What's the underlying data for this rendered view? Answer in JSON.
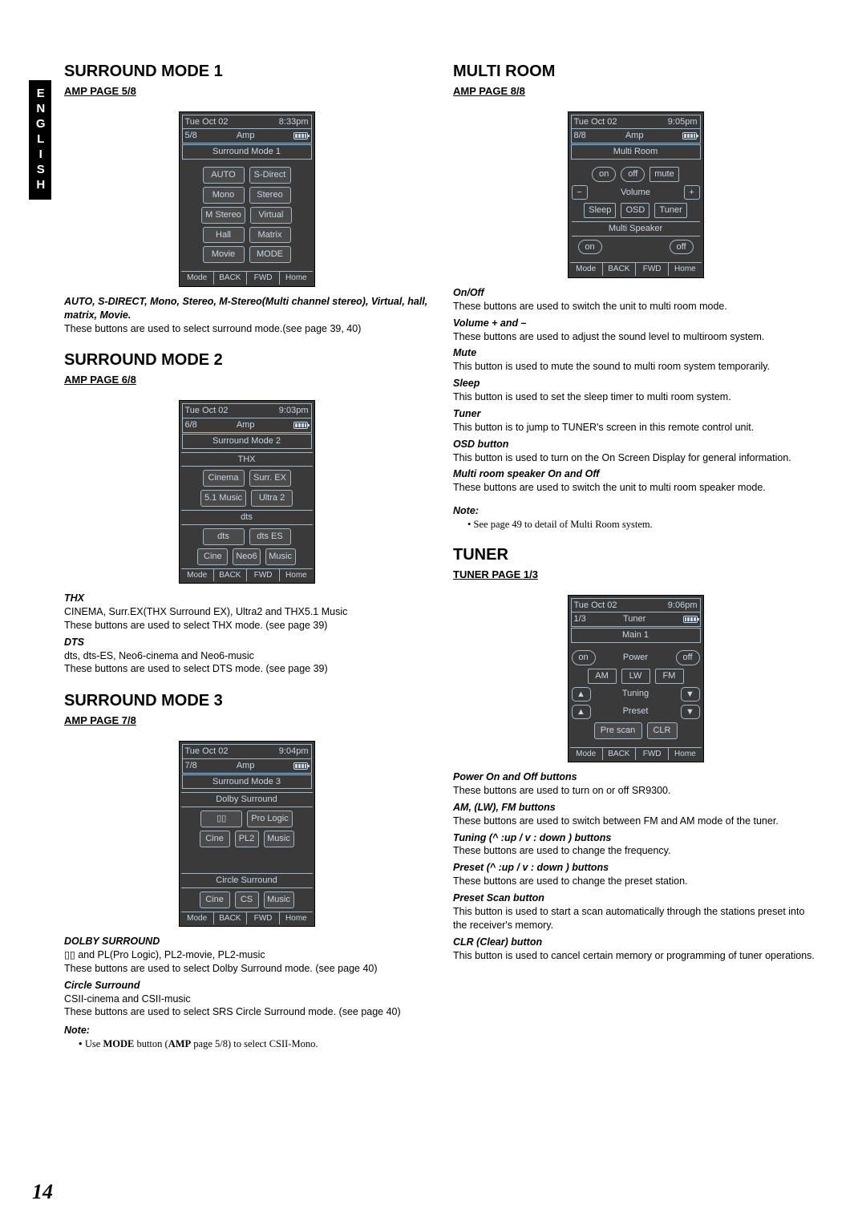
{
  "lang": "ENGLISH",
  "page_number": "14",
  "screens": {
    "date": "Tue Oct 02",
    "device": "Amp",
    "tuner_device": "Tuner",
    "nav": [
      "Mode",
      "BACK",
      "FWD",
      "Home"
    ]
  },
  "sm1": {
    "title": "SURROUND MODE 1",
    "page": "AMP PAGE 5/8",
    "time": "8:33pm",
    "idx": "5/8",
    "screen_title": "Surround Mode 1",
    "rows": [
      [
        "AUTO",
        "S-Direct"
      ],
      [
        "Mono",
        "Stereo"
      ],
      [
        "M Stereo",
        "Virtual"
      ],
      [
        "Hall",
        "Matrix"
      ],
      [
        "Movie",
        "MODE"
      ]
    ],
    "d1_title": "AUTO, S-DIRECT, Mono, Stereo, M-Stereo(Multi channel stereo), Virtual, hall, matrix, Movie.",
    "d1_text": "These buttons are used to select surround mode.(see page 39, 40)"
  },
  "sm2": {
    "title": "SURROUND MODE 2",
    "page": "AMP PAGE 6/8",
    "time": "9:03pm",
    "idx": "6/8",
    "screen_title": "Surround Mode 2",
    "sub1": "THX",
    "r1": [
      "Cinema",
      "Surr. EX"
    ],
    "r2": [
      "5.1 Music",
      "Ultra 2"
    ],
    "sub2": "dts",
    "r3": [
      "dts",
      "dts ES"
    ],
    "r4": [
      "Cine",
      "Neo6",
      "Music"
    ],
    "thx_title": "THX",
    "thx_text": "CINEMA, Surr.EX(THX Surround EX), Ultra2 and THX5.1 Music\nThese buttons are used to select THX mode. (see page 39)",
    "dts_title": "DTS",
    "dts_text": "dts, dts-ES, Neo6-cinema and Neo6-music\nThese buttons are used to select DTS mode. (see page 39)"
  },
  "sm3": {
    "title": "SURROUND MODE 3",
    "page": "AMP PAGE 7/8",
    "time": "9:04pm",
    "idx": "7/8",
    "screen_title": "Surround Mode 3",
    "sub1": "Dolby Surround",
    "r1a": "▯▯",
    "r1b": "Pro Logic",
    "r2": [
      "Cine",
      "PL2",
      "Music"
    ],
    "sub2": "Circle Surround",
    "r3": [
      "Cine",
      "CS",
      "Music"
    ],
    "ds_title": "DOLBY SURROUND",
    "ds_text": "▯▯ and PL(Pro Logic), PL2-movie, PL2-music\nThese buttons are used to select Dolby Surround mode. (see page 40)",
    "cs_title": "Circle Surround",
    "cs_text": "CSII-cinema and CSII-music\nThese buttons are used to select SRS Circle Surround mode. (see page 40)",
    "note": "Note:",
    "note_text": "Use MODE button (AMP page 5/8) to select CSII-Mono."
  },
  "mr": {
    "title": "MULTI ROOM",
    "page": "AMP PAGE 8/8",
    "time": "9:05pm",
    "idx": "8/8",
    "screen_title": "Multi Room",
    "on": "on",
    "off": "off",
    "mute": "mute",
    "minus": "−",
    "volume": "Volume",
    "plus": "+",
    "sleep": "Sleep",
    "osd": "OSD",
    "tuner": "Tuner",
    "ms_label": "Multi Speaker",
    "d": [
      {
        "t": "On/Off",
        "x": "These buttons are used to switch the unit to multi room mode."
      },
      {
        "t": "Volume + and –",
        "x": "These buttons are used to adjust the sound level to multiroom system."
      },
      {
        "t": "Mute",
        "x": "This button is used to mute the sound  to multi room system temporarily."
      },
      {
        "t": "Sleep",
        "x": "This button is used to set the sleep timer to multi room system."
      },
      {
        "t": "Tuner",
        "x": "This button is to jump to TUNER's screen in this remote control unit."
      },
      {
        "t": "OSD button",
        "x": "This button is used to turn on the On Screen Display for general information."
      },
      {
        "t": "Multi room speaker On and Off",
        "x": "These buttons are used to switch the unit to multi room speaker mode."
      }
    ],
    "note": "Note:",
    "note_text": "See page 49 to detail of Multi Room system."
  },
  "tuner": {
    "title": "TUNER",
    "page": "TUNER PAGE 1/3",
    "time": "9:06pm",
    "idx": "1/3",
    "sub": "Main 1",
    "on": "on",
    "power": "Power",
    "off": "off",
    "bands": [
      "AM",
      "LW",
      "FM"
    ],
    "tuning": "Tuning",
    "preset": "Preset",
    "prescan": "Pre scan",
    "clr": "CLR",
    "d": [
      {
        "t": "Power On and Off buttons",
        "x": " These buttons are used to turn on or off SR9300."
      },
      {
        "t": "AM, (LW), FM buttons",
        "x": "These buttons are used to switch between FM and AM mode of the tuner."
      },
      {
        "t": "Tuning (^ :up / v : down ) buttons",
        "x": "These buttons are used to change the frequency."
      },
      {
        "t": "Preset (^ :up / v : down ) buttons",
        "x": "These buttons are used to change the preset station."
      },
      {
        "t": "Preset Scan button",
        "x": "This button is used to start a scan automatically through the stations preset into the receiver's memory."
      },
      {
        "t": "CLR (Clear) button",
        "x": "This button is used to cancel certain memory or programming of tuner operations."
      }
    ]
  }
}
